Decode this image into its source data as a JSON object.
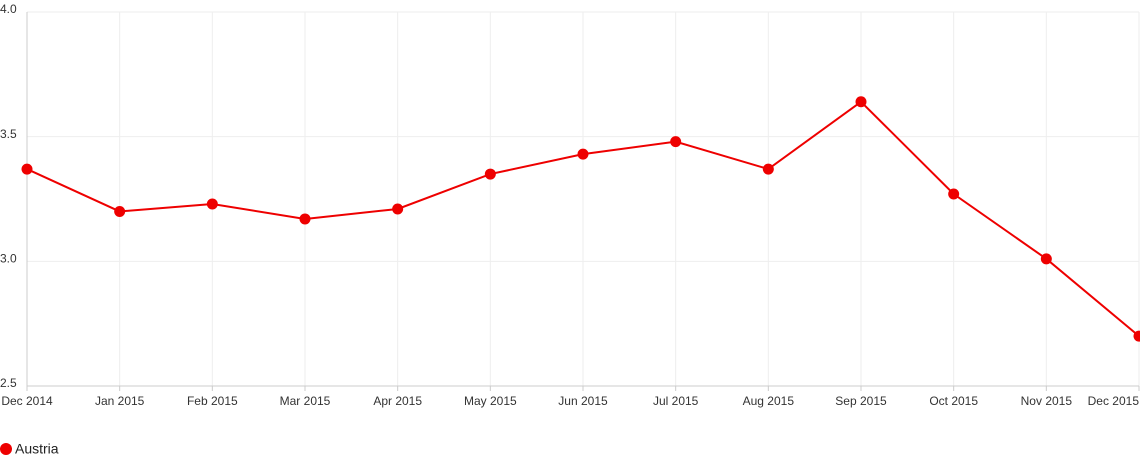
{
  "chart_data": {
    "type": "line",
    "categories": [
      "Dec 2014",
      "Jan 2015",
      "Feb 2015",
      "Mar 2015",
      "Apr 2015",
      "May 2015",
      "Jun 2015",
      "Jul 2015",
      "Aug 2015",
      "Sep 2015",
      "Oct 2015",
      "Nov 2015",
      "Dec 2015"
    ],
    "series": [
      {
        "name": "Austria",
        "color": "#ee0000",
        "values": [
          3.37,
          3.2,
          3.23,
          3.17,
          3.21,
          3.35,
          3.43,
          3.48,
          3.37,
          3.64,
          3.27,
          3.01,
          2.7
        ]
      }
    ],
    "ylim": [
      2.5,
      4.0
    ],
    "yticks": [
      2.5,
      {
        "value": 3,
        "label": "3.0"
      },
      3.5,
      {
        "value": 4,
        "label": "4.0"
      }
    ],
    "grid": true
  }
}
